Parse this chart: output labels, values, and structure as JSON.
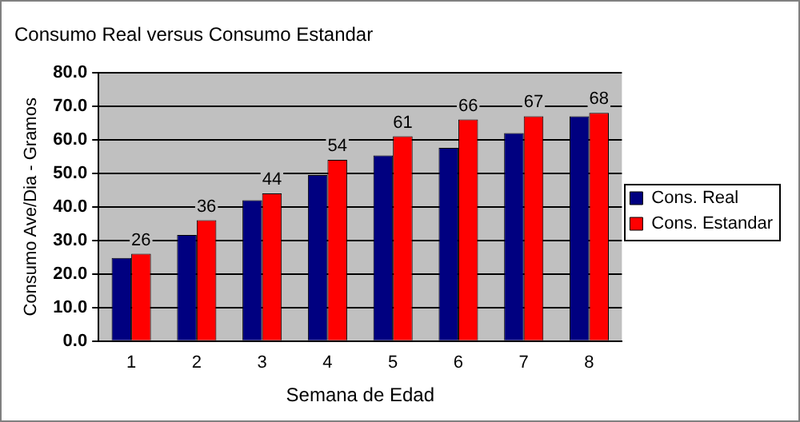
{
  "chart_data": {
    "type": "bar",
    "title": "Consumo Real versus Consumo Estandar",
    "xlabel": "Semana de Edad",
    "ylabel": "Consumo Ave/Dia - Gramos",
    "categories": [
      "1",
      "2",
      "3",
      "4",
      "5",
      "6",
      "7",
      "8"
    ],
    "series": [
      {
        "name": "Cons. Real",
        "color": "#000080",
        "values": [
          24.8,
          31.6,
          42.0,
          49.5,
          55.3,
          57.6,
          62.0,
          67.0
        ]
      },
      {
        "name": "Cons. Estandar",
        "color": "#ff0000",
        "values": [
          26,
          36,
          44,
          54,
          61,
          66,
          67,
          68
        ],
        "value_labels": [
          "26",
          "36",
          "44",
          "54",
          "61",
          "66",
          "67",
          "68"
        ]
      }
    ],
    "ylim": [
      0,
      80
    ],
    "yticks": [
      {
        "value": 0,
        "label": "0.0"
      },
      {
        "value": 10,
        "label": "10.0"
      },
      {
        "value": 20,
        "label": "20.0"
      },
      {
        "value": 30,
        "label": "30.0"
      },
      {
        "value": 40,
        "label": "40.0"
      },
      {
        "value": 50,
        "label": "50.0"
      },
      {
        "value": 60,
        "label": "60.0"
      },
      {
        "value": 70,
        "label": "70.0"
      },
      {
        "value": 80,
        "label": "80.0"
      }
    ],
    "grid": "y",
    "legend": "right"
  }
}
